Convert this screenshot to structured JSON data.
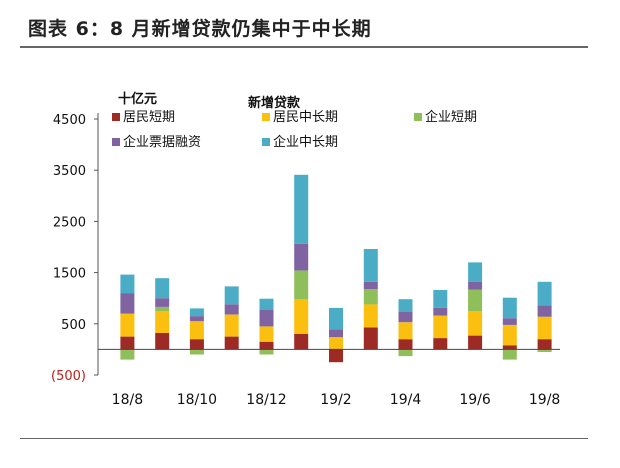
{
  "figure_title": "图表 6：8 月新增贷款仍集中于中长期",
  "chart_data": {
    "type": "bar",
    "stacked": true,
    "unit_label": "十亿元",
    "legend_title": "新增贷款",
    "categories": [
      "18/8",
      "18/9",
      "18/10",
      "18/11",
      "18/12",
      "19/1",
      "19/2",
      "19/3",
      "19/4",
      "19/5",
      "19/6",
      "19/7",
      "19/8"
    ],
    "x_tick_labels": [
      "18/8",
      "18/10",
      "18/12",
      "19/2",
      "19/4",
      "19/6",
      "19/8"
    ],
    "y_tick_labels": [
      "4500",
      "3500",
      "2500",
      "1500",
      "500",
      "(500)"
    ],
    "ylim": [
      -500,
      4500
    ],
    "y_ticks": [
      -500,
      500,
      1500,
      2500,
      3500,
      4500
    ],
    "series": [
      {
        "name": "居民短期",
        "color": "#9e2a25",
        "values": [
          250,
          320,
          200,
          250,
          150,
          300,
          -250,
          430,
          200,
          220,
          270,
          80,
          200
        ]
      },
      {
        "name": "居民中长期",
        "color": "#fbbf0f",
        "values": [
          450,
          430,
          350,
          430,
          300,
          680,
          240,
          450,
          330,
          440,
          480,
          400,
          440
        ]
      },
      {
        "name": "企业短期",
        "color": "#8fbf5a",
        "values": [
          -200,
          80,
          -100,
          0,
          -100,
          560,
          0,
          300,
          -130,
          0,
          420,
          -200,
          -50
        ]
      },
      {
        "name": "企业票据融资",
        "color": "#8064a2",
        "values": [
          400,
          170,
          100,
          200,
          320,
          520,
          150,
          140,
          200,
          150,
          150,
          130,
          220
        ]
      },
      {
        "name": "企业中长期",
        "color": "#4bacc6",
        "values": [
          360,
          390,
          150,
          350,
          220,
          1350,
          420,
          640,
          250,
          350,
          380,
          400,
          460
        ]
      }
    ]
  }
}
